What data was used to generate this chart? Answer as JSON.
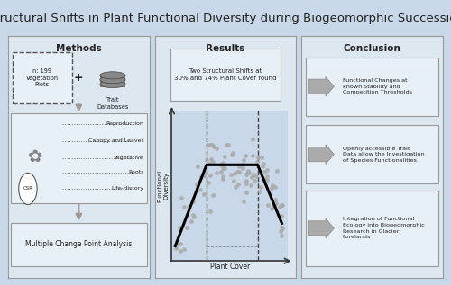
{
  "title": "Structural Shifts in Plant Functional Diversity during Biogeomorphic Succession",
  "title_fontsize": 9.5,
  "bg_color": "#c8d8e8",
  "panel_color": "#dce7f0",
  "box_color": "#e8f0f7",
  "text_color": "#222222",
  "section_titles": [
    "Methods",
    "Results",
    "Conclusion"
  ],
  "methods_items": [
    "Reproduction",
    "Canopy and Leaves",
    "Vegetative",
    "Roots",
    "Life-History"
  ],
  "conclusion_items": [
    "Functional Changes at\nknown Stability and\nCompetition Thresholds",
    "Openly accessible Trait\nData allow the Investigation\nof Species Functionalities",
    "Integration of Functional\nEcology into Biogeomorphic\nResearch in Glacier\nForelands"
  ],
  "results_annotation": "Two Structural Shifts at\n30% and 74% Plant Cover found",
  "xlabel": "Plant Cover",
  "ylabel": "Functional\nDiversity",
  "methods_top_left": "n: 199\nVegetation\nPlots",
  "methods_top_right": "Trait\nDatabases",
  "methods_bottom": "Multiple Change Point Analysis"
}
